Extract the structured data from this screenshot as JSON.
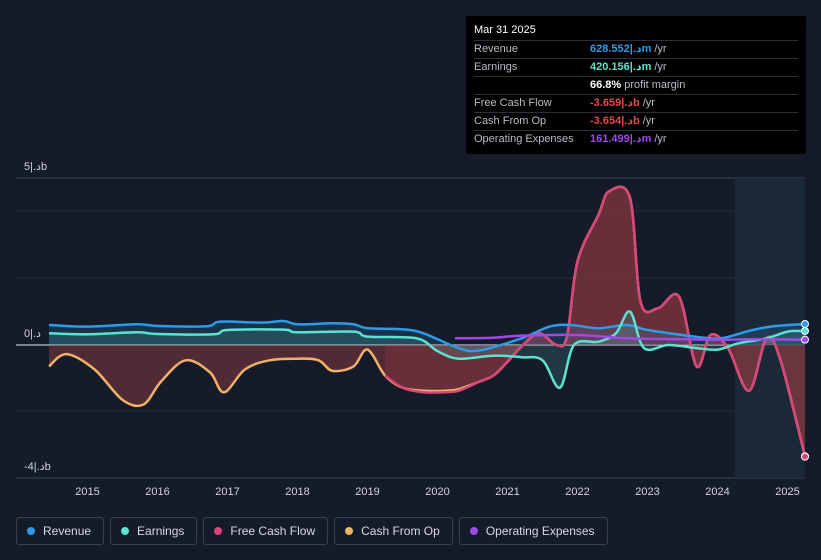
{
  "colors": {
    "revenue": "#2d9be8",
    "earnings": "#5de2cf",
    "free_cash_flow": "#d9467a",
    "cash_from_op": "#f0b268",
    "operating_expenses": "#a149e8",
    "negative": "#e5484d"
  },
  "tooltip": {
    "date": "Mar 31 2025",
    "rows": [
      {
        "label": "Revenue",
        "value": "628.552|.دm",
        "unit": "/yr",
        "color": "#2d9be8"
      },
      {
        "label": "Earnings",
        "value": "420.156|.دm",
        "unit": "/yr",
        "color": "#5de2cf"
      },
      {
        "label": "",
        "value": "66.8%",
        "unit": "profit margin",
        "color": "#ffffff"
      },
      {
        "label": "Free Cash Flow",
        "value": "-3.659|.دb",
        "unit": "/yr",
        "color": "#e5484d"
      },
      {
        "label": "Cash From Op",
        "value": "-3.654|.دb",
        "unit": "/yr",
        "color": "#e5484d"
      },
      {
        "label": "Operating Expenses",
        "value": "161.499|.دm",
        "unit": "/yr",
        "color": "#a149e8"
      }
    ]
  },
  "legend": [
    {
      "label": "Revenue",
      "color": "#2d9be8"
    },
    {
      "label": "Earnings",
      "color": "#5de2cf"
    },
    {
      "label": "Free Cash Flow",
      "color": "#d9467a"
    },
    {
      "label": "Cash From Op",
      "color": "#f0b268"
    },
    {
      "label": "Operating Expenses",
      "color": "#a149e8"
    }
  ],
  "chart_data": {
    "type": "area",
    "title": "",
    "unit": "|.دb",
    "y_top_label": "5|.دb",
    "y_zero_label": "0|.د",
    "y_bottom_label": "-4|.دb",
    "ylim": [
      -4,
      5
    ],
    "xlim": [
      2014.45,
      2025.25
    ],
    "x_ticks": [
      "2015",
      "2016",
      "2017",
      "2018",
      "2019",
      "2020",
      "2021",
      "2022",
      "2023",
      "2024",
      "2025"
    ],
    "x_tick_values": [
      2015,
      2016,
      2017,
      2018,
      2019,
      2020,
      2021,
      2022,
      2023,
      2024,
      2025
    ],
    "forecast_start": 2024.25,
    "series": [
      {
        "name": "Revenue",
        "key": "revenue",
        "points": [
          [
            2014.45,
            0.6
          ],
          [
            2015,
            0.55
          ],
          [
            2015.7,
            0.62
          ],
          [
            2016,
            0.57
          ],
          [
            2016.7,
            0.56
          ],
          [
            2016.9,
            0.7
          ],
          [
            2017.5,
            0.67
          ],
          [
            2017.8,
            0.72
          ],
          [
            2018,
            0.62
          ],
          [
            2018.5,
            0.65
          ],
          [
            2018.8,
            0.62
          ],
          [
            2019,
            0.5
          ],
          [
            2019.5,
            0.47
          ],
          [
            2019.8,
            0.35
          ],
          [
            2020.3,
            -0.1
          ],
          [
            2020.6,
            -0.18
          ],
          [
            2021.2,
            0.2
          ],
          [
            2021.6,
            0.55
          ],
          [
            2021.9,
            0.6
          ],
          [
            2022.3,
            0.5
          ],
          [
            2022.7,
            0.6
          ],
          [
            2023,
            0.45
          ],
          [
            2023.5,
            0.3
          ],
          [
            2023.9,
            0.2
          ],
          [
            2024.1,
            0.22
          ],
          [
            2024.5,
            0.45
          ],
          [
            2024.8,
            0.56
          ],
          [
            2025.25,
            0.63
          ]
        ]
      },
      {
        "name": "Earnings",
        "key": "earnings",
        "points": [
          [
            2014.45,
            0.35
          ],
          [
            2015,
            0.32
          ],
          [
            2015.7,
            0.38
          ],
          [
            2016,
            0.33
          ],
          [
            2016.8,
            0.32
          ],
          [
            2017,
            0.45
          ],
          [
            2017.8,
            0.46
          ],
          [
            2018,
            0.38
          ],
          [
            2018.8,
            0.4
          ],
          [
            2019,
            0.25
          ],
          [
            2019.7,
            0.2
          ],
          [
            2020,
            -0.2
          ],
          [
            2020.3,
            -0.45
          ],
          [
            2020.8,
            -0.35
          ],
          [
            2021.2,
            -0.4
          ],
          [
            2021.5,
            -0.5
          ],
          [
            2021.75,
            -1.4
          ],
          [
            2021.95,
            0.0
          ],
          [
            2022.3,
            0.1
          ],
          [
            2022.55,
            0.35
          ],
          [
            2022.75,
            1.0
          ],
          [
            2022.95,
            -0.1
          ],
          [
            2023.3,
            0.0
          ],
          [
            2023.7,
            -0.1
          ],
          [
            2024.0,
            -0.15
          ],
          [
            2024.3,
            0.05
          ],
          [
            2024.7,
            0.2
          ],
          [
            2025.0,
            0.4
          ],
          [
            2025.25,
            0.42
          ]
        ]
      },
      {
        "name": "Free Cash Flow",
        "key": "free_cash_flow",
        "points": [
          [
            2019.25,
            -1.0
          ],
          [
            2019.5,
            -1.4
          ],
          [
            2019.8,
            -1.55
          ],
          [
            2020.1,
            -1.55
          ],
          [
            2020.3,
            -1.5
          ],
          [
            2020.6,
            -1.2
          ],
          [
            2020.8,
            -1.0
          ],
          [
            2021.0,
            -0.55
          ],
          [
            2021.2,
            -0.05
          ],
          [
            2021.45,
            0.35
          ],
          [
            2021.7,
            0.0
          ],
          [
            2021.85,
            0.25
          ],
          [
            2022.0,
            2.5
          ],
          [
            2022.3,
            3.9
          ],
          [
            2022.45,
            4.6
          ],
          [
            2022.75,
            4.4
          ],
          [
            2022.9,
            1.3
          ],
          [
            2023.15,
            1.1
          ],
          [
            2023.45,
            1.45
          ],
          [
            2023.7,
            -0.7
          ],
          [
            2023.9,
            0.3
          ],
          [
            2024.15,
            -0.1
          ],
          [
            2024.45,
            -1.5
          ],
          [
            2024.7,
            0.2
          ],
          [
            2024.9,
            -0.5
          ],
          [
            2025.25,
            -3.66
          ]
        ]
      },
      {
        "name": "Cash From Op",
        "key": "cash_from_op",
        "points": [
          [
            2014.45,
            -0.7
          ],
          [
            2014.7,
            -0.3
          ],
          [
            2015.1,
            -0.8
          ],
          [
            2015.5,
            -1.8
          ],
          [
            2015.8,
            -1.95
          ],
          [
            2016.05,
            -1.2
          ],
          [
            2016.4,
            -0.5
          ],
          [
            2016.75,
            -0.9
          ],
          [
            2016.95,
            -1.55
          ],
          [
            2017.25,
            -0.8
          ],
          [
            2017.6,
            -0.5
          ],
          [
            2018.0,
            -0.45
          ],
          [
            2018.3,
            -0.5
          ],
          [
            2018.5,
            -0.85
          ],
          [
            2018.8,
            -0.7
          ],
          [
            2019.0,
            -0.15
          ],
          [
            2019.25,
            -1.0
          ],
          [
            2019.5,
            -1.4
          ],
          [
            2019.8,
            -1.5
          ],
          [
            2020.1,
            -1.5
          ],
          [
            2020.3,
            -1.45
          ],
          [
            2020.6,
            -1.2
          ],
          [
            2020.8,
            -1.0
          ],
          [
            2021.0,
            -0.55
          ],
          [
            2021.2,
            -0.05
          ],
          [
            2021.45,
            0.35
          ],
          [
            2021.7,
            0.0
          ],
          [
            2021.85,
            0.25
          ],
          [
            2022.0,
            2.5
          ],
          [
            2022.3,
            3.9
          ],
          [
            2022.45,
            4.6
          ],
          [
            2022.75,
            4.4
          ],
          [
            2022.9,
            1.3
          ],
          [
            2023.15,
            1.1
          ],
          [
            2023.45,
            1.45
          ],
          [
            2023.7,
            -0.7
          ],
          [
            2023.9,
            0.3
          ],
          [
            2024.15,
            -0.1
          ],
          [
            2024.45,
            -1.5
          ],
          [
            2024.7,
            0.2
          ],
          [
            2024.9,
            -0.5
          ],
          [
            2025.25,
            -3.65
          ]
        ]
      },
      {
        "name": "Operating Expenses",
        "key": "operating_expenses",
        "points": [
          [
            2020.25,
            0.2
          ],
          [
            2020.8,
            0.22
          ],
          [
            2021.2,
            0.28
          ],
          [
            2022.0,
            0.3
          ],
          [
            2022.7,
            0.2
          ],
          [
            2023.2,
            0.18
          ],
          [
            2024.0,
            0.16
          ],
          [
            2024.6,
            0.17
          ],
          [
            2025.25,
            0.16
          ]
        ]
      }
    ]
  }
}
